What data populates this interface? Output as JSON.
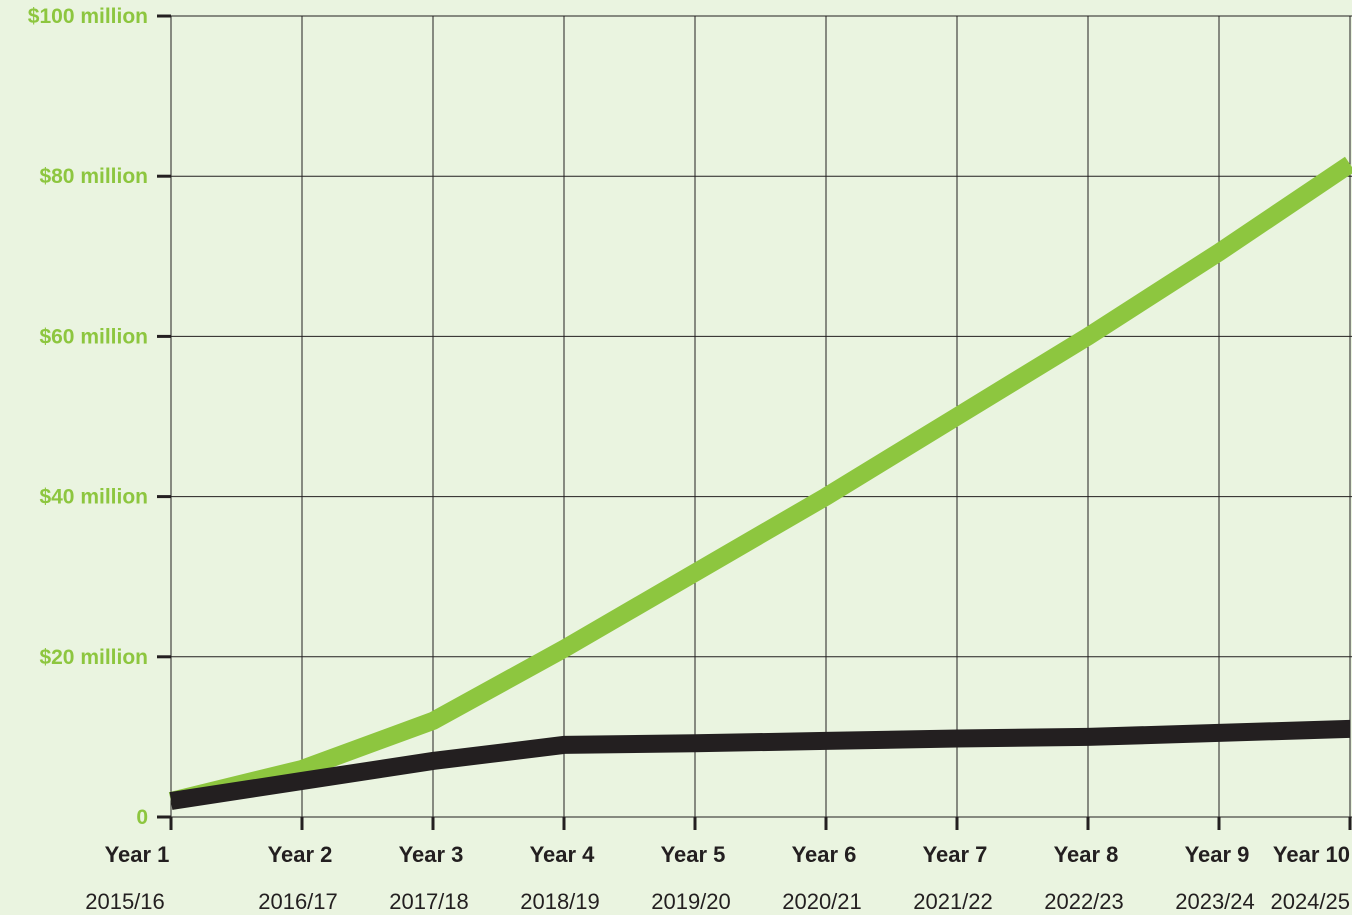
{
  "colors": {
    "background": "#eaf4e0",
    "accent_green": "#8dc63f",
    "dark": "#231f20",
    "grid": "#231f20"
  },
  "chart_data": {
    "type": "line",
    "title": "",
    "xlabel": "",
    "ylabel": "",
    "categories": [
      "Year 1",
      "Year 2",
      "Year 3",
      "Year 4",
      "Year 5",
      "Year 6",
      "Year 7",
      "Year 8",
      "Year 9",
      "Year 10"
    ],
    "category_sublabels": [
      "2015/16",
      "2016/17",
      "2017/18",
      "2018/19",
      "2019/20",
      "2020/21",
      "2021/22",
      "2022/23",
      "2023/24",
      "2024/25"
    ],
    "y_tick_values": [
      0,
      20,
      40,
      60,
      80,
      100
    ],
    "y_tick_labels": [
      "0",
      "$20 million",
      "$40 million",
      "$60 million",
      "$80 million",
      "$100 million"
    ],
    "ylim": [
      0,
      100
    ],
    "grid": true,
    "legend": "none",
    "series": [
      {
        "color": "#8dc63f",
        "values": [
          2,
          6,
          12,
          21,
          30.5,
          40,
          50,
          60,
          70.5,
          81.5
        ]
      },
      {
        "color": "#231f20",
        "values": [
          2,
          4.5,
          7,
          9,
          9.2,
          9.5,
          9.8,
          10,
          10.5,
          11
        ]
      }
    ]
  }
}
